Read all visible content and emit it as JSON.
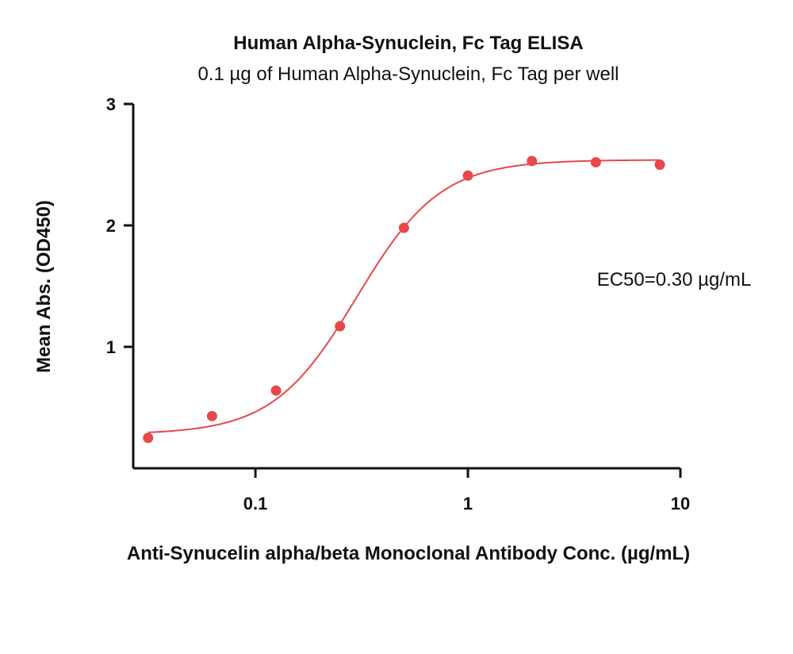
{
  "chart_data": {
    "type": "scatter",
    "title": "Human Alpha-Synuclein, Fc Tag ELISA",
    "subtitle": "0.1 µg of Human Alpha-Synuclein, Fc Tag per well",
    "xlabel": "Anti-Synucelin alpha/beta Monoclonal Antibody Conc. (µg/mL)",
    "ylabel": "Mean Abs. (OD450)",
    "x_scale": "log",
    "xlim": [
      0.0266,
      10
    ],
    "ylim": [
      0,
      3
    ],
    "x_ticks": [
      {
        "value": 0.1,
        "label": "0.1"
      },
      {
        "value": 1,
        "label": "1"
      },
      {
        "value": 10,
        "label": "10"
      }
    ],
    "y_ticks": [
      {
        "value": 1,
        "label": "1"
      },
      {
        "value": 2,
        "label": "2"
      },
      {
        "value": 3,
        "label": "3"
      }
    ],
    "grid": false,
    "legend": "none",
    "series": [
      {
        "color": "#e8474b",
        "x": [
          0.03125,
          0.0625,
          0.125,
          0.25,
          0.5,
          1,
          2,
          4,
          8
        ],
        "y": [
          0.25,
          0.43,
          0.64,
          1.17,
          1.98,
          2.41,
          2.53,
          2.52,
          2.5
        ]
      }
    ],
    "fit": {
      "model": "4PL",
      "bottom": 0.28,
      "top": 2.54,
      "ec50": 0.3,
      "hill": 2.2,
      "color": "#e8474b"
    },
    "annotation": "EC50=0.30 µg/mL"
  }
}
